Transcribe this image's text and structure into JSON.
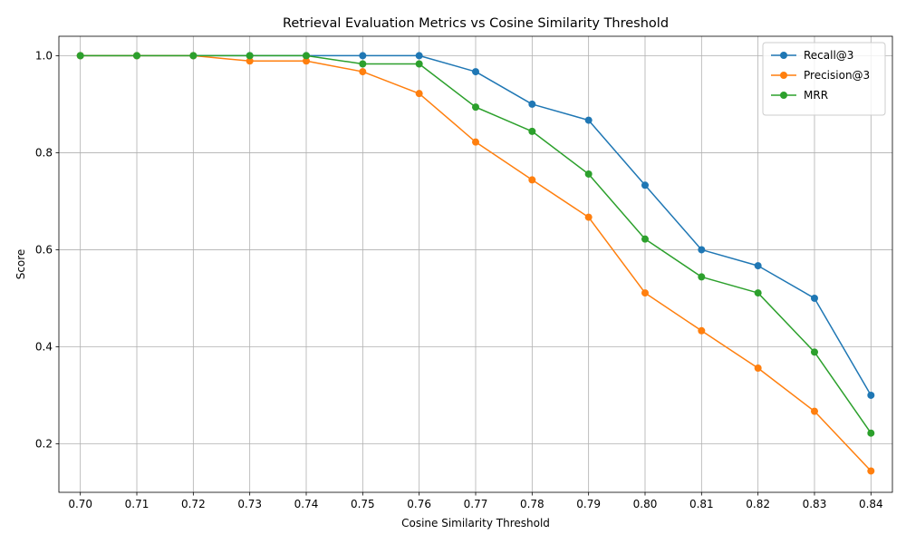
{
  "chart_data": {
    "type": "line",
    "title": "Retrieval Evaluation Metrics vs Cosine Similarity Threshold",
    "xlabel": "Cosine Similarity Threshold",
    "ylabel": "Score",
    "x": [
      0.7,
      0.71,
      0.72,
      0.73,
      0.74,
      0.75,
      0.76,
      0.77,
      0.78,
      0.79,
      0.8,
      0.81,
      0.82,
      0.83,
      0.84
    ],
    "x_tick_labels": [
      "0.70",
      "0.71",
      "0.72",
      "0.73",
      "0.74",
      "0.75",
      "0.76",
      "0.77",
      "0.78",
      "0.79",
      "0.80",
      "0.81",
      "0.82",
      "0.83",
      "0.84"
    ],
    "y_ticks": [
      0.2,
      0.4,
      0.6,
      0.8,
      1.0
    ],
    "y_tick_labels": [
      "0.2",
      "0.4",
      "0.6",
      "0.8",
      "1.0"
    ],
    "xlim": [
      0.6962,
      0.8438
    ],
    "ylim": [
      0.1,
      1.04
    ],
    "grid": true,
    "legend_position": "top-right",
    "series": [
      {
        "name": "Recall@3",
        "color": "#1f77b4",
        "values": [
          1.0,
          1.0,
          1.0,
          1.0,
          1.0,
          1.0,
          1.0,
          0.967,
          0.9,
          0.867,
          0.733,
          0.6,
          0.567,
          0.5,
          0.3
        ]
      },
      {
        "name": "Precision@3",
        "color": "#ff7f0e",
        "values": [
          1.0,
          1.0,
          1.0,
          0.989,
          0.989,
          0.967,
          0.922,
          0.822,
          0.744,
          0.667,
          0.511,
          0.433,
          0.356,
          0.267,
          0.144
        ]
      },
      {
        "name": "MRR",
        "color": "#2ca02c",
        "values": [
          1.0,
          1.0,
          1.0,
          1.0,
          1.0,
          0.983,
          0.983,
          0.894,
          0.844,
          0.756,
          0.622,
          0.544,
          0.511,
          0.389,
          0.222
        ]
      }
    ]
  }
}
